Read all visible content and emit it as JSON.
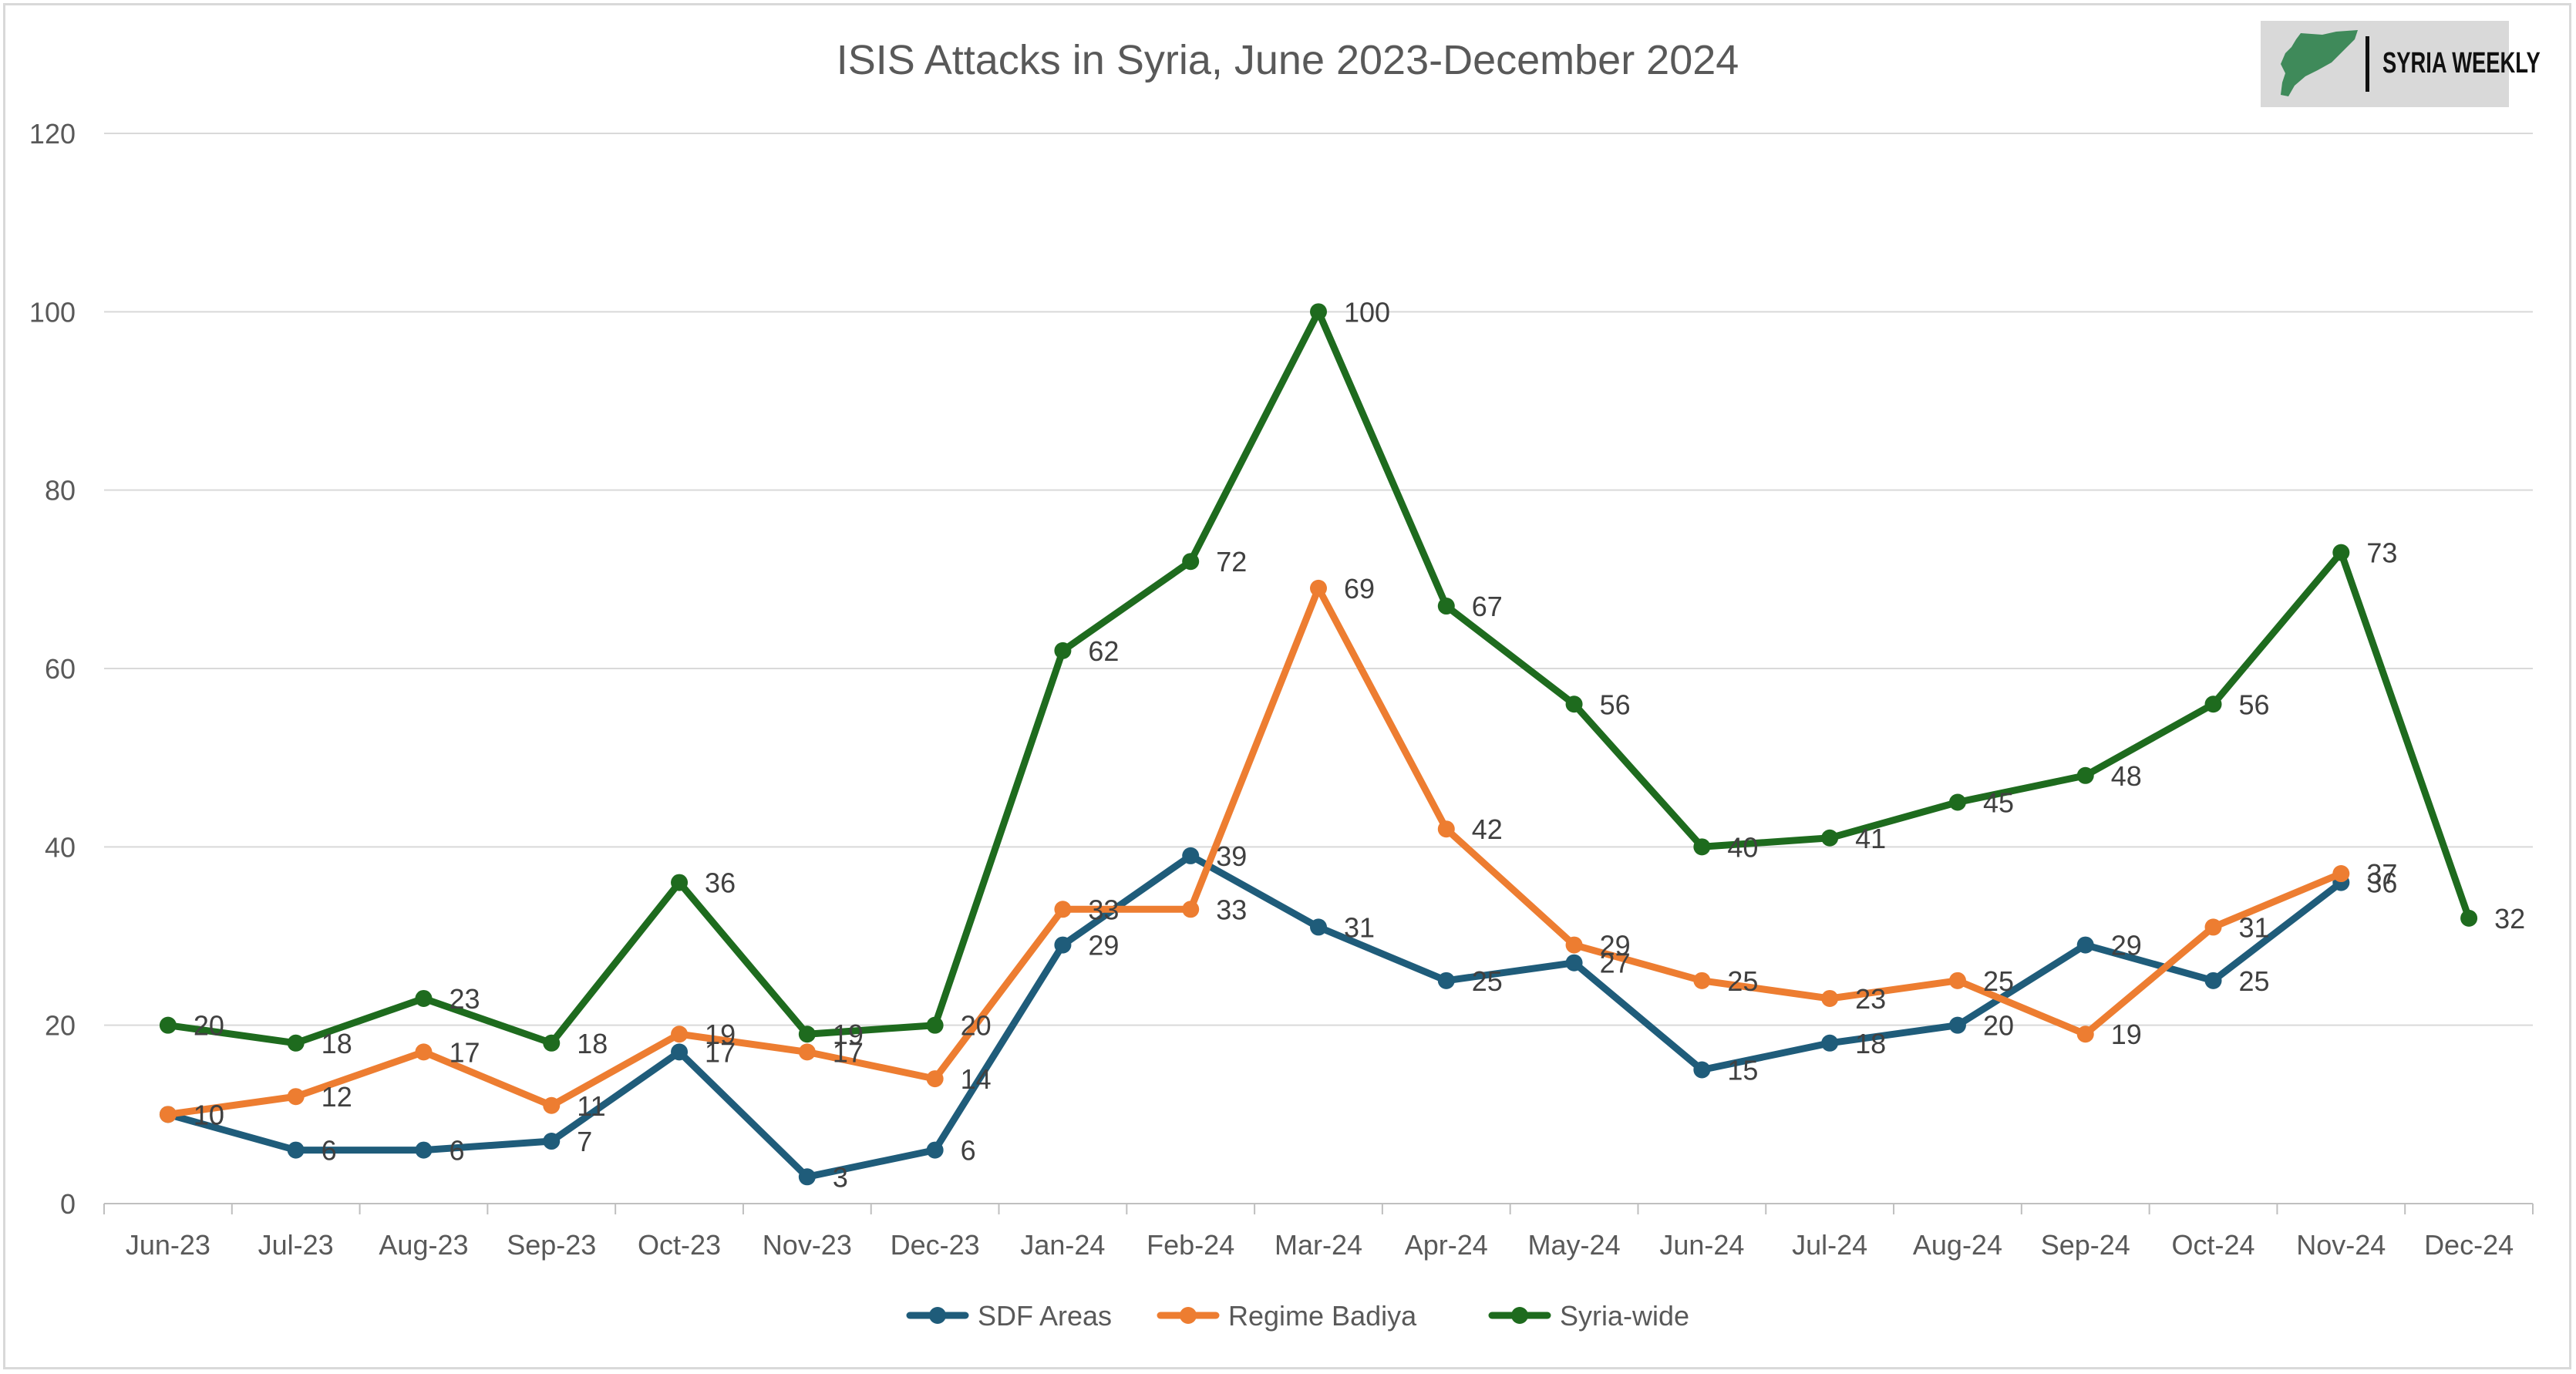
{
  "chart_data": {
    "type": "line",
    "title": "ISIS Attacks in Syria, June 2023-December 2024",
    "xlabel": "",
    "ylabel": "",
    "ylim": [
      0,
      120
    ],
    "yticks": [
      "0",
      "20",
      "40",
      "60",
      "80",
      "100",
      "120"
    ],
    "grid": true,
    "legend_position": "bottom",
    "categories": [
      "Jun-23",
      "Jul-23",
      "Aug-23",
      "Sep-23",
      "Oct-23",
      "Nov-23",
      "Dec-23",
      "Jan-24",
      "Feb-24",
      "Mar-24",
      "Apr-24",
      "May-24",
      "Jun-24",
      "Jul-24",
      "Aug-24",
      "Sep-24",
      "Oct-24",
      "Nov-24",
      "Dec-24"
    ],
    "series": [
      {
        "name": "SDF Areas",
        "color": "#1f5c7a",
        "values": [
          10,
          6,
          6,
          7,
          17,
          3,
          6,
          29,
          39,
          31,
          25,
          27,
          15,
          18,
          20,
          29,
          25,
          36,
          null
        ]
      },
      {
        "name": "Regime Badiya",
        "color": "#ed7d31",
        "values": [
          10,
          12,
          17,
          11,
          19,
          17,
          14,
          33,
          33,
          69,
          42,
          29,
          25,
          23,
          25,
          19,
          31,
          37,
          null
        ]
      },
      {
        "name": "Syria-wide",
        "color": "#1e6b1e",
        "values": [
          20,
          18,
          23,
          18,
          36,
          19,
          20,
          62,
          72,
          100,
          67,
          56,
          40,
          41,
          45,
          48,
          56,
          73,
          32
        ]
      }
    ]
  },
  "logo": {
    "text": "SYRIA WEEKLY",
    "icon": "syria-map-icon",
    "map_color": "#3f8a5a",
    "background": "#d9d9d9"
  }
}
